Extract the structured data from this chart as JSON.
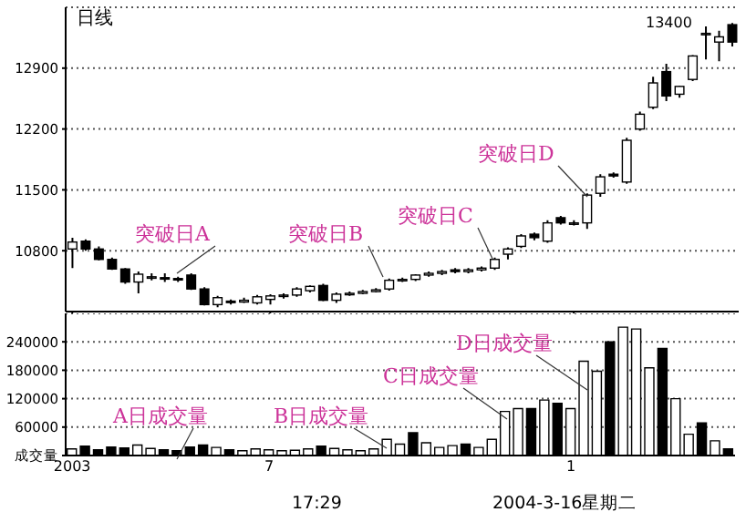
{
  "chart_data": [
    {
      "type": "candlestick",
      "title": "日线",
      "categories": [
        "2003",
        null,
        null,
        null,
        null,
        null,
        null,
        null,
        null,
        null,
        null,
        null,
        null,
        null,
        null,
        "7",
        null,
        null,
        null,
        null,
        null,
        null,
        null,
        null,
        null,
        null,
        null,
        null,
        null,
        null,
        null,
        null,
        null,
        null,
        null,
        null,
        null,
        null,
        "1",
        null,
        null,
        null,
        null,
        null,
        null,
        null,
        null,
        null,
        null,
        null,
        null
      ],
      "ohlc": [
        [
          10820,
          10950,
          10600,
          10900
        ],
        [
          10910,
          10930,
          10800,
          10820
        ],
        [
          10820,
          10850,
          10690,
          10700
        ],
        [
          10700,
          10720,
          10580,
          10590
        ],
        [
          10590,
          10600,
          10420,
          10440
        ],
        [
          10440,
          10560,
          10310,
          10530
        ],
        [
          10500,
          10540,
          10460,
          10500
        ],
        [
          10490,
          10540,
          10440,
          10480
        ],
        [
          10480,
          10500,
          10440,
          10470
        ],
        [
          10520,
          10540,
          10350,
          10360
        ],
        [
          10360,
          10380,
          10170,
          10180
        ],
        [
          10180,
          10280,
          10150,
          10260
        ],
        [
          10220,
          10240,
          10180,
          10210
        ],
        [
          10210,
          10260,
          10200,
          10230
        ],
        [
          10200,
          10290,
          10180,
          10270
        ],
        [
          10240,
          10300,
          10180,
          10280
        ],
        [
          10290,
          10310,
          10250,
          10290
        ],
        [
          10290,
          10380,
          10270,
          10360
        ],
        [
          10340,
          10400,
          10320,
          10390
        ],
        [
          10400,
          10420,
          10220,
          10230
        ],
        [
          10230,
          10320,
          10200,
          10300
        ],
        [
          10300,
          10330,
          10280,
          10310
        ],
        [
          10310,
          10350,
          10300,
          10330
        ],
        [
          10330,
          10370,
          10320,
          10350
        ],
        [
          10360,
          10480,
          10340,
          10460
        ],
        [
          10460,
          10490,
          10440,
          10470
        ],
        [
          10470,
          10530,
          10450,
          10520
        ],
        [
          10520,
          10560,
          10500,
          10540
        ],
        [
          10540,
          10580,
          10520,
          10560
        ],
        [
          10580,
          10600,
          10540,
          10560
        ],
        [
          10560,
          10600,
          10540,
          10580
        ],
        [
          10580,
          10620,
          10560,
          10600
        ],
        [
          10600,
          10720,
          10580,
          10700
        ],
        [
          10760,
          10840,
          10700,
          10820
        ],
        [
          10850,
          10990,
          10830,
          10970
        ],
        [
          10990,
          11010,
          10920,
          10950
        ],
        [
          10910,
          11150,
          10890,
          11120
        ],
        [
          11180,
          11200,
          11100,
          11120
        ],
        [
          11120,
          11150,
          11090,
          11120
        ],
        [
          11120,
          11460,
          11050,
          11440
        ],
        [
          11460,
          11680,
          11420,
          11650
        ],
        [
          11680,
          11700,
          11640,
          11660
        ],
        [
          11590,
          12100,
          11570,
          12070
        ],
        [
          12200,
          12400,
          12180,
          12370
        ],
        [
          12450,
          12800,
          12430,
          12730
        ],
        [
          12860,
          12950,
          12520,
          12580
        ],
        [
          12600,
          12700,
          12560,
          12690
        ],
        [
          12770,
          13050,
          12750,
          13040
        ],
        [
          13300,
          13380,
          13000,
          13300
        ],
        [
          13200,
          13330,
          12980,
          13260
        ],
        [
          13400,
          13420,
          13150,
          13200
        ]
      ],
      "ylim": [
        10100,
        13600
      ],
      "yticks": [
        10800,
        11500,
        12200,
        12900
      ],
      "grid": "y",
      "tick_labels": "y",
      "annotations": [
        "突破日A",
        "突破日B",
        "突破日C",
        "突破日D",
        "13400"
      ]
    },
    {
      "type": "bar",
      "categories": [
        "2003",
        null,
        null,
        null,
        null,
        null,
        null,
        null,
        null,
        null,
        null,
        null,
        null,
        null,
        null,
        "7",
        null,
        null,
        null,
        null,
        null,
        null,
        null,
        null,
        null,
        null,
        null,
        null,
        null,
        null,
        null,
        null,
        null,
        null,
        null,
        null,
        null,
        null,
        "1",
        null,
        null,
        null,
        null,
        null,
        null,
        null,
        null,
        null,
        null,
        null,
        null
      ],
      "values": [
        14000,
        20000,
        12000,
        18000,
        16000,
        22000,
        15000,
        12000,
        10000,
        18000,
        22000,
        17000,
        12000,
        10000,
        14000,
        12000,
        10000,
        11000,
        14000,
        20000,
        15000,
        12000,
        10000,
        14000,
        34000,
        24000,
        48000,
        27000,
        17000,
        21000,
        24000,
        17000,
        34000,
        93000,
        99000,
        99000,
        117000,
        110000,
        99000,
        199000,
        178000,
        240000,
        271000,
        267000,
        185000,
        226000,
        120000,
        45000,
        69000,
        31000,
        14000
      ],
      "colors": [
        "#ffffff",
        "#000000",
        "#000000",
        "#000000",
        "#000000",
        "#ffffff",
        "#ffffff",
        "#000000",
        "#000000",
        "#000000",
        "#000000",
        "#ffffff",
        "#000000",
        "#ffffff",
        "#ffffff",
        "#ffffff",
        "#ffffff",
        "#ffffff",
        "#ffffff",
        "#000000",
        "#ffffff",
        "#ffffff",
        "#ffffff",
        "#ffffff",
        "#ffffff",
        "#ffffff",
        "#000000",
        "#ffffff",
        "#ffffff",
        "#ffffff",
        "#000000",
        "#ffffff",
        "#ffffff",
        "#ffffff",
        "#ffffff",
        "#000000",
        "#ffffff",
        "#000000",
        "#ffffff",
        "#ffffff",
        "#ffffff",
        "#000000",
        "#ffffff",
        "#ffffff",
        "#ffffff",
        "#000000",
        "#ffffff",
        "#ffffff",
        "#000000",
        "#ffffff",
        "#000000"
      ],
      "ylim": [
        0,
        300000
      ],
      "yticks": [
        {
          "value": 0,
          "label": "成交量"
        },
        60000,
        120000,
        180000,
        240000
      ],
      "grid": "y",
      "annotations": [
        "A日成交量",
        "B日成交量",
        "C日成交量",
        "D日成交量",
        "17:29",
        "2004-3-16星期二"
      ]
    }
  ]
}
